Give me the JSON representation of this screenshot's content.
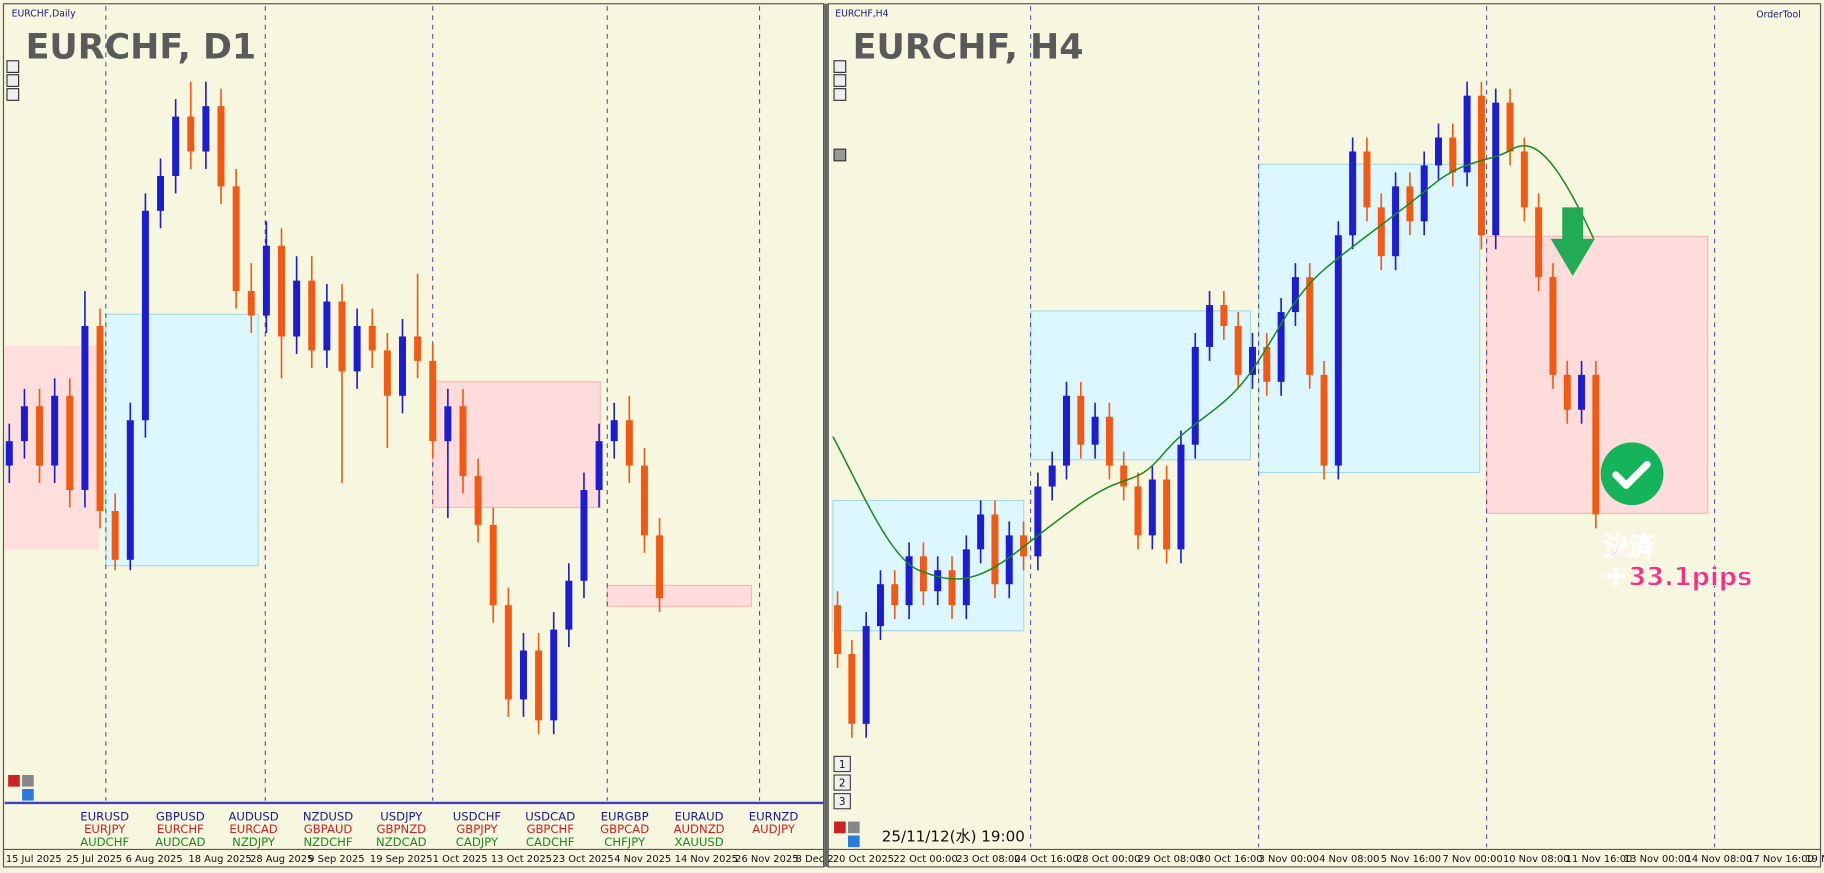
{
  "chart_data": [
    {
      "type": "candlestick",
      "label": "EURCHF,Daily",
      "title": "EURCHF, D1",
      "ylim": [
        0.92,
        0.94
      ],
      "up_color": "#1c1cd0",
      "down_color": "#f05a14",
      "candles": [
        [
          0.928,
          0.9292,
          0.9275,
          0.9287
        ],
        [
          0.9287,
          0.9302,
          0.9282,
          0.9297
        ],
        [
          0.9297,
          0.9302,
          0.9275,
          0.928
        ],
        [
          0.928,
          0.9305,
          0.9275,
          0.93
        ],
        [
          0.93,
          0.9305,
          0.9268,
          0.9273
        ],
        [
          0.9273,
          0.933,
          0.9268,
          0.932
        ],
        [
          0.932,
          0.9325,
          0.9262,
          0.9267
        ],
        [
          0.9267,
          0.9272,
          0.925,
          0.9253
        ],
        [
          0.9253,
          0.9298,
          0.925,
          0.9293
        ],
        [
          0.9293,
          0.9358,
          0.9288,
          0.9353
        ],
        [
          0.9353,
          0.9368,
          0.9348,
          0.9363
        ],
        [
          0.9363,
          0.9385,
          0.9358,
          0.938
        ],
        [
          0.938,
          0.939,
          0.9365,
          0.937
        ],
        [
          0.937,
          0.939,
          0.9365,
          0.9383
        ],
        [
          0.9383,
          0.9388,
          0.9355,
          0.936
        ],
        [
          0.936,
          0.9365,
          0.9325,
          0.933
        ],
        [
          0.933,
          0.9338,
          0.9318,
          0.9323
        ],
        [
          0.9323,
          0.935,
          0.9318,
          0.9343
        ],
        [
          0.9343,
          0.9348,
          0.9305,
          0.9317
        ],
        [
          0.9317,
          0.934,
          0.9312,
          0.9333
        ],
        [
          0.9333,
          0.934,
          0.9308,
          0.9313
        ],
        [
          0.9313,
          0.9332,
          0.9308,
          0.9327
        ],
        [
          0.9327,
          0.9332,
          0.9275,
          0.9307
        ],
        [
          0.9307,
          0.9325,
          0.9302,
          0.932
        ],
        [
          0.932,
          0.9325,
          0.9308,
          0.9313
        ],
        [
          0.9313,
          0.9318,
          0.9285,
          0.93
        ],
        [
          0.93,
          0.9322,
          0.9295,
          0.9317
        ],
        [
          0.9317,
          0.9335,
          0.9305,
          0.931
        ],
        [
          0.931,
          0.9315,
          0.9282,
          0.9287
        ],
        [
          0.9287,
          0.9302,
          0.9265,
          0.9297
        ],
        [
          0.9297,
          0.9302,
          0.9272,
          0.9277
        ],
        [
          0.9277,
          0.9282,
          0.9258,
          0.9263
        ],
        [
          0.9263,
          0.9268,
          0.9235,
          0.924
        ],
        [
          0.924,
          0.9245,
          0.9208,
          0.9213
        ],
        [
          0.9213,
          0.9232,
          0.9208,
          0.9227
        ],
        [
          0.9227,
          0.9232,
          0.9203,
          0.9207
        ],
        [
          0.9207,
          0.9238,
          0.9203,
          0.9233
        ],
        [
          0.9233,
          0.9252,
          0.9228,
          0.9247
        ],
        [
          0.9247,
          0.9278,
          0.9242,
          0.9273
        ],
        [
          0.9273,
          0.9292,
          0.9268,
          0.9287
        ],
        [
          0.9287,
          0.9298,
          0.9282,
          0.9293
        ],
        [
          0.9293,
          0.93,
          0.9275,
          0.928
        ],
        [
          0.928,
          0.9285,
          0.9255,
          0.926
        ],
        [
          0.926,
          0.9265,
          0.9238,
          0.9242
        ]
      ],
      "x_labels": [
        "15 Jul 2025",
        "25 Jul 2025",
        "6 Aug 2025",
        "18 Aug 2025",
        "28 Aug 2025",
        "9 Sep 2025",
        "19 Sep 2025",
        "1 Oct 2025",
        "13 Oct 2025",
        "23 Oct 2025",
        "4 Nov 2025",
        "14 Nov 2025",
        "26 Nov 2025",
        "8 Dec 2"
      ]
    },
    {
      "type": "candlestick",
      "label": "EURCHF,H4",
      "title": "EURCHF, H4",
      "ylim": [
        0.92,
        0.93
      ],
      "up_color": "#1c1cd0",
      "down_color": "#f05a14",
      "candles": [
        [
          0.922,
          0.9222,
          0.9211,
          0.9213
        ],
        [
          0.9213,
          0.9215,
          0.9201,
          0.9203
        ],
        [
          0.9203,
          0.9219,
          0.9201,
          0.9217
        ],
        [
          0.9217,
          0.9225,
          0.9215,
          0.9223
        ],
        [
          0.9223,
          0.9225,
          0.9218,
          0.922
        ],
        [
          0.922,
          0.9229,
          0.9218,
          0.9227
        ],
        [
          0.9227,
          0.9229,
          0.922,
          0.9222
        ],
        [
          0.9222,
          0.9227,
          0.922,
          0.9225
        ],
        [
          0.9225,
          0.9227,
          0.9218,
          0.922
        ],
        [
          0.922,
          0.923,
          0.9218,
          0.9228
        ],
        [
          0.9228,
          0.9235,
          0.9226,
          0.9233
        ],
        [
          0.9233,
          0.9235,
          0.9221,
          0.9223
        ],
        [
          0.9223,
          0.9232,
          0.9221,
          0.923
        ],
        [
          0.923,
          0.9232,
          0.9225,
          0.9227
        ],
        [
          0.9227,
          0.9239,
          0.9225,
          0.9237
        ],
        [
          0.9237,
          0.9242,
          0.9235,
          0.924
        ],
        [
          0.924,
          0.9252,
          0.9238,
          0.925
        ],
        [
          0.925,
          0.9252,
          0.9241,
          0.9243
        ],
        [
          0.9243,
          0.9249,
          0.9241,
          0.9247
        ],
        [
          0.9247,
          0.9249,
          0.9238,
          0.924
        ],
        [
          0.924,
          0.9242,
          0.9235,
          0.9237
        ],
        [
          0.9237,
          0.9239,
          0.9228,
          0.923
        ],
        [
          0.923,
          0.924,
          0.9228,
          0.9238
        ],
        [
          0.9238,
          0.924,
          0.9226,
          0.9228
        ],
        [
          0.9228,
          0.9245,
          0.9226,
          0.9243
        ],
        [
          0.9243,
          0.9259,
          0.9241,
          0.9257
        ],
        [
          0.9257,
          0.9265,
          0.9255,
          0.9263
        ],
        [
          0.9263,
          0.9265,
          0.9258,
          0.926
        ],
        [
          0.926,
          0.9262,
          0.9251,
          0.9253
        ],
        [
          0.9253,
          0.9259,
          0.9251,
          0.9257
        ],
        [
          0.9257,
          0.9259,
          0.925,
          0.9252
        ],
        [
          0.9252,
          0.9264,
          0.925,
          0.9262
        ],
        [
          0.9262,
          0.9269,
          0.926,
          0.9267
        ],
        [
          0.9267,
          0.9269,
          0.9251,
          0.9253
        ],
        [
          0.9253,
          0.9255,
          0.9238,
          0.924
        ],
        [
          0.924,
          0.9275,
          0.9238,
          0.9273
        ],
        [
          0.9273,
          0.9287,
          0.9271,
          0.9285
        ],
        [
          0.9285,
          0.9287,
          0.9275,
          0.9277
        ],
        [
          0.9277,
          0.9279,
          0.9268,
          0.927
        ],
        [
          0.927,
          0.9282,
          0.9268,
          0.928
        ],
        [
          0.928,
          0.9282,
          0.9273,
          0.9275
        ],
        [
          0.9275,
          0.9285,
          0.9273,
          0.9283
        ],
        [
          0.9283,
          0.9289,
          0.9281,
          0.9287
        ],
        [
          0.9287,
          0.9289,
          0.928,
          0.9282
        ],
        [
          0.9282,
          0.9295,
          0.928,
          0.9293
        ],
        [
          0.9293,
          0.9295,
          0.9271,
          0.9273
        ],
        [
          0.9273,
          0.9294,
          0.9271,
          0.9292
        ],
        [
          0.9292,
          0.9294,
          0.9283,
          0.9285
        ],
        [
          0.9285,
          0.9287,
          0.9275,
          0.9277
        ],
        [
          0.9277,
          0.9279,
          0.9265,
          0.9267
        ],
        [
          0.9267,
          0.9269,
          0.9251,
          0.9253
        ],
        [
          0.9253,
          0.9255,
          0.9246,
          0.9248
        ],
        [
          0.9248,
          0.9255,
          0.9246,
          0.9253
        ],
        [
          0.9253,
          0.9255,
          0.9231,
          0.9233
        ]
      ],
      "x_labels": [
        "20 Oct 2025",
        "22 Oct 00:00",
        "23 Oct 08:00",
        "24 Oct 16:00",
        "28 Oct 00:00",
        "29 Oct 08:00",
        "30 Oct 16:00",
        "3 Nov 00:00",
        "4 Nov 08:00",
        "5 Nov 16:00",
        "7 Nov 00:00",
        "10 Nov 08:00",
        "11 Nov 16:00",
        "13 Nov 00:00",
        "14 Nov 08:00",
        "17 Nov 16:00",
        "19 N"
      ]
    }
  ],
  "pair_grid": [
    [
      "EURUSD",
      "EURJPY",
      "AUDCHF"
    ],
    [
      "GBPUSD",
      "EURCHF",
      "AUDCAD"
    ],
    [
      "AUDUSD",
      "EURCAD",
      "NZDJPY"
    ],
    [
      "NZDUSD",
      "GBPAUD",
      "NZDCHF"
    ],
    [
      "USDJPY",
      "GBPNZD",
      "NZDCAD"
    ],
    [
      "USDCHF",
      "GBPJPY",
      "CADJPY"
    ],
    [
      "USDCAD",
      "GBPCHF",
      "CADCHF"
    ],
    [
      "EURGBP",
      "GBPCAD",
      "CHFJPY"
    ],
    [
      "EURAUD",
      "AUDNZD",
      "XAUUSD"
    ],
    [
      "EURNZD",
      "AUDJPY"
    ]
  ],
  "order_tool": "OrderTool",
  "timestamp": "25/11/12(水) 19:00",
  "buttons": [
    "1",
    "2",
    "3"
  ],
  "exit_label": "決済",
  "profit": "＋33.1pips"
}
